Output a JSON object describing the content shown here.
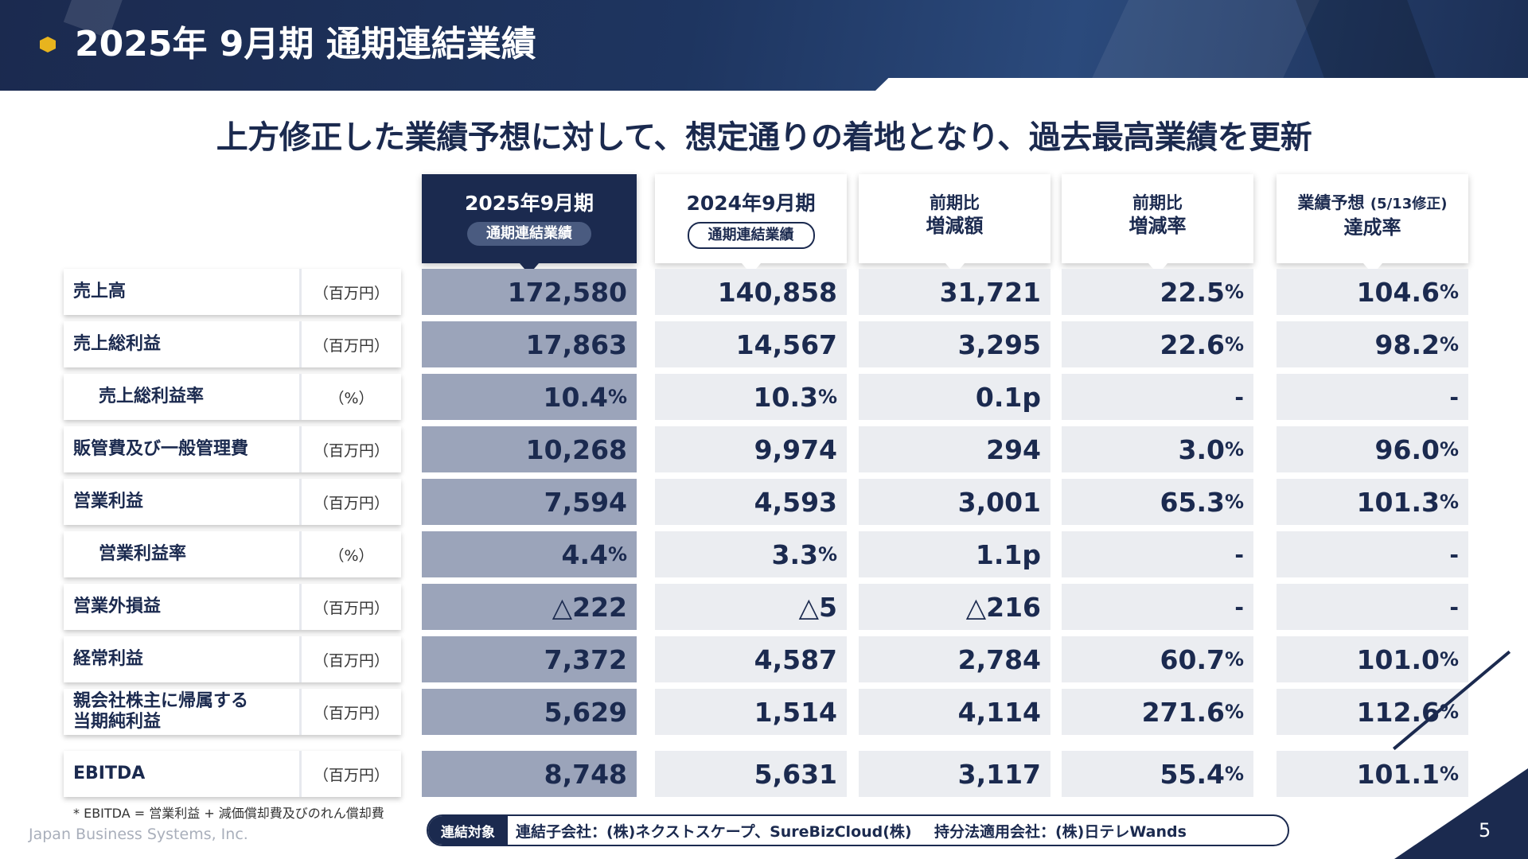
{
  "header": {
    "title": "2025年 9月期 通期連結業績",
    "dots": "· ·  ·  ·.............."
  },
  "headline": "上方修正した業績予想に対して、想定通りの着地となり、過去最高業績を更新",
  "columns": [
    {
      "line1": "2025年9月期",
      "pill": "通期連結業績"
    },
    {
      "line1": "2024年9月期",
      "pill": "通期連結業績"
    },
    {
      "line1": "前期比",
      "line2": "増減額"
    },
    {
      "line1": "前期比",
      "line2": "増減率"
    },
    {
      "line1a": "業績予想 ",
      "line1b": "(5/13修正)",
      "line2": "達成率"
    }
  ],
  "rows": [
    {
      "label": "売上高",
      "unit": "（百万円）",
      "indent": false,
      "v": [
        "172,580",
        "140,858",
        "31,721",
        "22.5",
        "104.6"
      ],
      "pct": [
        false,
        false,
        false,
        true,
        true
      ]
    },
    {
      "label": "売上総利益",
      "unit": "（百万円）",
      "indent": false,
      "v": [
        "17,863",
        "14,567",
        "3,295",
        "22.6",
        "98.2"
      ],
      "pct": [
        false,
        false,
        false,
        true,
        true
      ]
    },
    {
      "label": "売上総利益率",
      "unit": "（%）",
      "indent": true,
      "v": [
        "10.4",
        "10.3",
        "0.1p",
        "-",
        "-"
      ],
      "pct": [
        true,
        true,
        false,
        false,
        false
      ]
    },
    {
      "label": "販管費及び一般管理費",
      "unit": "（百万円）",
      "indent": false,
      "v": [
        "10,268",
        "9,974",
        "294",
        "3.0",
        "96.0"
      ],
      "pct": [
        false,
        false,
        false,
        true,
        true
      ]
    },
    {
      "label": "営業利益",
      "unit": "（百万円）",
      "indent": false,
      "v": [
        "7,594",
        "4,593",
        "3,001",
        "65.3",
        "101.3"
      ],
      "pct": [
        false,
        false,
        false,
        true,
        true
      ]
    },
    {
      "label": "営業利益率",
      "unit": "（%）",
      "indent": true,
      "v": [
        "4.4",
        "3.3",
        "1.1p",
        "-",
        "-"
      ],
      "pct": [
        true,
        true,
        false,
        false,
        false
      ]
    },
    {
      "label": "営業外損益",
      "unit": "（百万円）",
      "indent": false,
      "v": [
        "△222",
        "△5",
        "△216",
        "-",
        "-"
      ],
      "pct": [
        false,
        false,
        false,
        false,
        false
      ]
    },
    {
      "label": "経常利益",
      "unit": "（百万円）",
      "indent": false,
      "v": [
        "7,372",
        "4,587",
        "2,784",
        "60.7",
        "101.0"
      ],
      "pct": [
        false,
        false,
        false,
        true,
        true
      ]
    },
    {
      "label": "親会社株主に帰属する当期純利益",
      "unit": "（百万円）",
      "indent": false,
      "v": [
        "5,629",
        "1,514",
        "4,114",
        "271.6",
        "112.6"
      ],
      "pct": [
        false,
        false,
        false,
        true,
        true
      ]
    },
    {
      "label": "EBITDA",
      "unit": "（百万円）",
      "indent": false,
      "v": [
        "8,748",
        "5,631",
        "3,117",
        "55.4",
        "101.1"
      ],
      "pct": [
        false,
        false,
        false,
        true,
        true
      ]
    }
  ],
  "pct_symbol": "%",
  "footnote": "* EBITDA = 営業利益 + 減価償却費及びのれん償却費",
  "company": "Japan Business Systems, Inc.",
  "scope": {
    "tag": "連結対象",
    "subsidiaries": "連結子会社：(株)ネクストスケープ、SureBizCloud(株)",
    "equity_method": "持分法適用会社：(株)日テレWands"
  },
  "page_number": "5",
  "colors": {
    "navy": "#1b2a4f",
    "current_cell": "#9ba4ba",
    "cell": "#ebedf1",
    "bullet": "#e8b41e"
  }
}
